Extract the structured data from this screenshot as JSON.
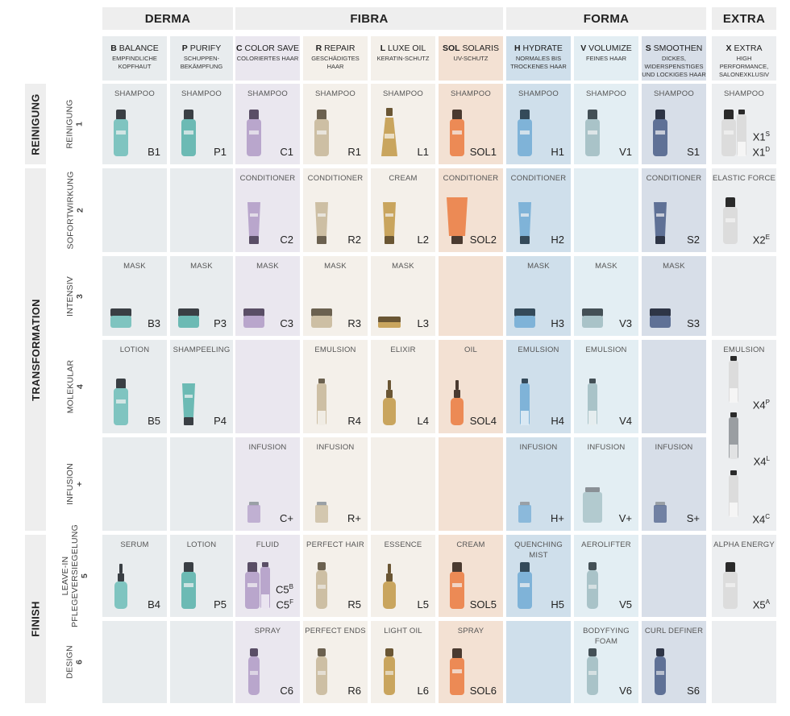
{
  "groups": [
    {
      "label": "DERMA",
      "col_start": 0,
      "col_span": 2
    },
    {
      "label": "FIBRA",
      "col_start": 2,
      "col_span": 4
    },
    {
      "label": "FORMA",
      "col_start": 6,
      "col_span": 3
    },
    {
      "label": "EXTRA",
      "col_start": 9,
      "col_span": 1
    }
  ],
  "columns": [
    {
      "letter": "B",
      "name": "BALANCE",
      "sub": "EMPFINDLICHE\nKOPFHAUT",
      "bg": "#e8ecee",
      "bottle": "#7fc4c0",
      "cap": "#3a3f44"
    },
    {
      "letter": "P",
      "name": "PURIFY",
      "sub": "SCHUPPEN-\nBEKÄMPFUNG",
      "bg": "#e8ecee",
      "bottle": "#6cbab4",
      "cap": "#3a3f44"
    },
    {
      "letter": "C",
      "name": "COLOR SAVE",
      "sub": "COLORIERTES HAAR",
      "bg": "#eae7ef",
      "bottle": "#b9a6cc",
      "cap": "#5a4e66"
    },
    {
      "letter": "R",
      "name": "REPAIR",
      "sub": "GESCHÄDIGTES HAAR",
      "bg": "#f4f0ea",
      "bottle": "#cdbfa4",
      "cap": "#6b6150"
    },
    {
      "letter": "L",
      "name": "LUXE OIL",
      "sub": "KERATIN-SCHUTZ",
      "bg": "#f4f0ea",
      "bottle": "#c9a55e",
      "cap": "#6a5634"
    },
    {
      "letter": "SOL",
      "name": "SOLARIS",
      "sub": "UV-SCHUTZ",
      "bg": "#f3e1d3",
      "bottle": "#ec8a55",
      "cap": "#4a3a30"
    },
    {
      "letter": "H",
      "name": "HYDRATE",
      "sub": "NORMALES BIS\nTROCKENES HAAR",
      "bg": "#cfdfeb",
      "bottle": "#7fb3d8",
      "cap": "#344a5a"
    },
    {
      "letter": "V",
      "name": "VOLUMIZE",
      "sub": "FEINES HAAR",
      "bg": "#e3eef3",
      "bottle": "#a9c3c8",
      "cap": "#445056"
    },
    {
      "letter": "S",
      "name": "SMOOTHEN",
      "sub": "DICKES,\nWIDERSPENSTIGES\nUND LOCKIGES HAAR",
      "bg": "#d7dee8",
      "bottle": "#5f7196",
      "cap": "#2e3546"
    },
    {
      "letter": "X",
      "name": "EXTRA",
      "sub": "HIGH PERFORMANCE,\nSALONEXKLUSIV",
      "bg": "#eceef0",
      "bottle": "#dcdcdc",
      "cap": "#2a2a2a"
    }
  ],
  "phases": [
    {
      "label": "REINIGUNG",
      "row_start": 0,
      "row_span": 1
    },
    {
      "label": "TRANSFORMATION",
      "row_start": 1,
      "row_span": 4
    },
    {
      "label": "FINISH",
      "row_start": 5,
      "row_span": 2
    }
  ],
  "rows": [
    {
      "name": "REINIGUNG",
      "num": "1",
      "cells": [
        {
          "type": "SHAMPOO",
          "code": "B1",
          "shape": "bottle"
        },
        {
          "type": "SHAMPOO",
          "code": "P1",
          "shape": "bottle"
        },
        {
          "type": "SHAMPOO",
          "code": "C1",
          "shape": "bottle"
        },
        {
          "type": "SHAMPOO",
          "code": "R1",
          "shape": "bottle"
        },
        {
          "type": "SHAMPOO",
          "code": "L1",
          "shape": "luxe"
        },
        {
          "type": "SHAMPOO",
          "code": "SOL1",
          "shape": "bottle"
        },
        {
          "type": "SHAMPOO",
          "code": "H1",
          "shape": "bottle"
        },
        {
          "type": "SHAMPOO",
          "code": "V1",
          "shape": "bottle"
        },
        {
          "type": "SHAMPOO",
          "code": "S1",
          "shape": "bottle"
        },
        {
          "type": "SHAMPOO",
          "code": "X1",
          "code_sup": "S",
          "code2": "X1",
          "code2_sup": "D",
          "shape": "double"
        }
      ]
    },
    {
      "name": "SOFORTWIRKUNG",
      "num": "2",
      "cells": [
        {
          "type": "",
          "code": "",
          "shape": ""
        },
        {
          "type": "",
          "code": "",
          "shape": ""
        },
        {
          "type": "CONDITIONER",
          "code": "C2",
          "shape": "tube"
        },
        {
          "type": "CONDITIONER",
          "code": "R2",
          "shape": "tube"
        },
        {
          "type": "CREAM",
          "code": "L2",
          "shape": "tube"
        },
        {
          "type": "CONDITIONER",
          "code": "SOL2",
          "shape": "widetube"
        },
        {
          "type": "CONDITIONER",
          "code": "H2",
          "shape": "tube"
        },
        {
          "type": "",
          "code": "",
          "shape": ""
        },
        {
          "type": "CONDITIONER",
          "code": "S2",
          "shape": "tube"
        },
        {
          "type": "ELASTIC FORCE",
          "code": "X2",
          "code_sup": "E",
          "shape": "bottle"
        }
      ]
    },
    {
      "name": "INTENSIV",
      "num": "3",
      "cells": [
        {
          "type": "MASK",
          "code": "B3",
          "shape": "jar"
        },
        {
          "type": "MASK",
          "code": "P3",
          "shape": "jar"
        },
        {
          "type": "MASK",
          "code": "C3",
          "shape": "jar"
        },
        {
          "type": "MASK",
          "code": "R3",
          "shape": "jar"
        },
        {
          "type": "MASK",
          "code": "L3",
          "shape": "flatjar"
        },
        {
          "type": "",
          "code": "",
          "shape": ""
        },
        {
          "type": "MASK",
          "code": "H3",
          "shape": "jar"
        },
        {
          "type": "MASK",
          "code": "V3",
          "shape": "jar"
        },
        {
          "type": "MASK",
          "code": "S3",
          "shape": "jar"
        },
        {
          "type": "",
          "code": "",
          "shape": ""
        }
      ]
    },
    {
      "name": "MOLEKULAR",
      "num": "4",
      "cells": [
        {
          "type": "LOTION",
          "code": "B5",
          "shape": "bottle"
        },
        {
          "type": "SHAMPEELING",
          "code": "P4",
          "shape": "tube"
        },
        {
          "type": "",
          "code": "",
          "shape": ""
        },
        {
          "type": "EMULSION",
          "code": "R4",
          "shape": "slim"
        },
        {
          "type": "ELIXIR",
          "code": "L4",
          "shape": "dropper"
        },
        {
          "type": "OIL",
          "code": "SOL4",
          "shape": "dropper"
        },
        {
          "type": "EMULSION",
          "code": "H4",
          "shape": "slim"
        },
        {
          "type": "EMULSION",
          "code": "V4",
          "shape": "slim"
        },
        {
          "type": "",
          "code": "",
          "shape": ""
        },
        {
          "type": "EMULSION",
          "code": "",
          "shape": ""
        }
      ]
    },
    {
      "name": "INFUSION",
      "num": "+",
      "cells": [
        {
          "type": "",
          "code": "",
          "shape": ""
        },
        {
          "type": "",
          "code": "",
          "shape": ""
        },
        {
          "type": "INFUSION",
          "code": "C+",
          "shape": "vial"
        },
        {
          "type": "INFUSION",
          "code": "R+",
          "shape": "vial"
        },
        {
          "type": "",
          "code": "",
          "shape": ""
        },
        {
          "type": "",
          "code": "",
          "shape": ""
        },
        {
          "type": "INFUSION",
          "code": "H+",
          "shape": "vial"
        },
        {
          "type": "INFUSION",
          "code": "V+",
          "shape": "bigvial"
        },
        {
          "type": "INFUSION",
          "code": "S+",
          "shape": "vial"
        },
        {
          "type": "",
          "code": "",
          "shape": ""
        }
      ]
    },
    {
      "name": "LEAVE-IN\nPFLEGEVERSIEGELUNG",
      "num": "5",
      "cells": [
        {
          "type": "SERUM",
          "code": "B4",
          "shape": "dropper"
        },
        {
          "type": "LOTION",
          "code": "P5",
          "shape": "bottle"
        },
        {
          "type": "FLUID",
          "code": "C5",
          "code_sup": "B",
          "code2": "C5",
          "code2_sup": "F",
          "shape": "double"
        },
        {
          "type": "PERFECT HAIR",
          "code": "R5",
          "shape": "spray"
        },
        {
          "type": "ESSENCE",
          "code": "L5",
          "shape": "dropper"
        },
        {
          "type": "CREAM",
          "code": "SOL5",
          "shape": "bottle"
        },
        {
          "type": "QUENCHING\nMIST",
          "code": "H5",
          "shape": "bottle"
        },
        {
          "type": "AEROLIFTER",
          "code": "V5",
          "shape": "spray"
        },
        {
          "type": "",
          "code": "",
          "shape": ""
        },
        {
          "type": "ALPHA ENERGY",
          "code": "X5",
          "code_sup": "A",
          "shape": "bottle"
        }
      ]
    },
    {
      "name": "DESIGN",
      "num": "6",
      "cells": [
        {
          "type": "",
          "code": "",
          "shape": ""
        },
        {
          "type": "",
          "code": "",
          "shape": ""
        },
        {
          "type": "SPRAY",
          "code": "C6",
          "shape": "spray"
        },
        {
          "type": "PERFECT ENDS",
          "code": "R6",
          "shape": "spray"
        },
        {
          "type": "LIGHT OIL",
          "code": "L6",
          "shape": "spray"
        },
        {
          "type": "SPRAY",
          "code": "SOL6",
          "shape": "bottle"
        },
        {
          "type": "",
          "code": "",
          "shape": ""
        },
        {
          "type": "BODYFYING\nFOAM",
          "code": "V6",
          "shape": "spray"
        },
        {
          "type": "CURL DEFINER",
          "code": "S6",
          "shape": "spray"
        },
        {
          "type": "",
          "code": "",
          "shape": ""
        }
      ]
    }
  ],
  "extra_emulsions": [
    {
      "code": "X4",
      "sup": "P"
    },
    {
      "code": "X4",
      "sup": "L"
    },
    {
      "code": "X4",
      "sup": "C"
    }
  ]
}
